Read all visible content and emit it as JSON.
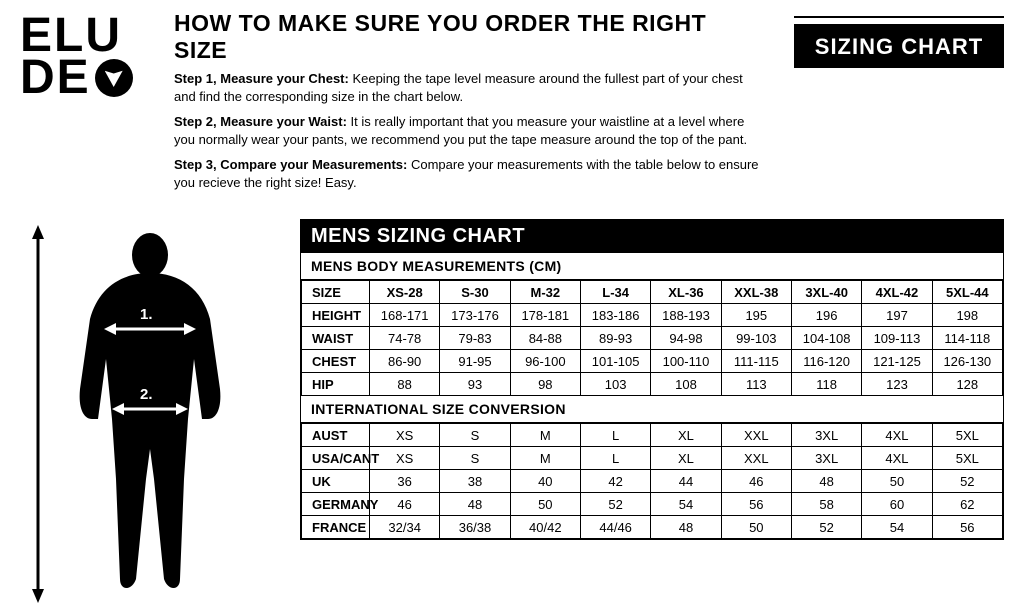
{
  "logo": {
    "line1": "ELU",
    "line2": "DE"
  },
  "header": {
    "title": "HOW TO MAKE SURE YOU ORDER THE RIGHT SIZE",
    "badge": "SIZING CHART",
    "steps": [
      {
        "label": "Step 1, Measure your Chest:",
        "text": " Keeping the tape level measure around the fullest part of your chest and find the corresponding size in the chart below."
      },
      {
        "label": "Step 2, Measure your Waist:",
        "text": " It is really important that you measure your waistline at a level where you normally wear your pants, we recommend you put the tape measure around the top of the pant."
      },
      {
        "label": "Step 3, Compare your Measurements:",
        "text": " Compare your measurements with the table below to ensure you recieve the right size! Easy."
      }
    ]
  },
  "figure": {
    "marker1": "1.",
    "marker2": "2.",
    "silhouette_color": "#000000",
    "marker_text_color": "#ffffff"
  },
  "chart": {
    "title": "MENS SIZING CHART",
    "section1": {
      "title": "MENS BODY MEASUREMENTS (CM)",
      "columns": [
        "SIZE",
        "XS-28",
        "S-30",
        "M-32",
        "L-34",
        "XL-36",
        "XXL-38",
        "3XL-40",
        "4XL-42",
        "5XL-44"
      ],
      "rows": [
        {
          "label": "HEIGHT",
          "cells": [
            "168-171",
            "173-176",
            "178-181",
            "183-186",
            "188-193",
            "195",
            "196",
            "197",
            "198"
          ]
        },
        {
          "label": "WAIST",
          "cells": [
            "74-78",
            "79-83",
            "84-88",
            "89-93",
            "94-98",
            "99-103",
            "104-108",
            "109-113",
            "114-118"
          ]
        },
        {
          "label": "CHEST",
          "cells": [
            "86-90",
            "91-95",
            "96-100",
            "101-105",
            "100-110",
            "111-115",
            "116-120",
            "121-125",
            "126-130"
          ]
        },
        {
          "label": "HIP",
          "cells": [
            "88",
            "93",
            "98",
            "103",
            "108",
            "113",
            "118",
            "123",
            "128"
          ]
        }
      ]
    },
    "section2": {
      "title": "INTERNATIONAL SIZE CONVERSION",
      "rows": [
        {
          "label": "AUST",
          "cells": [
            "XS",
            "S",
            "M",
            "L",
            "XL",
            "XXL",
            "3XL",
            "4XL",
            "5XL"
          ]
        },
        {
          "label": "USA/CANT",
          "cells": [
            "XS",
            "S",
            "M",
            "L",
            "XL",
            "XXL",
            "3XL",
            "4XL",
            "5XL"
          ]
        },
        {
          "label": "UK",
          "cells": [
            "36",
            "38",
            "40",
            "42",
            "44",
            "46",
            "48",
            "50",
            "52"
          ]
        },
        {
          "label": "GERMANY",
          "cells": [
            "46",
            "48",
            "50",
            "52",
            "54",
            "56",
            "58",
            "60",
            "62"
          ]
        },
        {
          "label": "FRANCE",
          "cells": [
            "32/34",
            "36/38",
            "40/42",
            "44/46",
            "48",
            "50",
            "52",
            "54",
            "56"
          ]
        }
      ]
    },
    "style": {
      "border_color": "#000000",
      "header_bg": "#000000",
      "header_fg": "#ffffff",
      "cell_bg": "#ffffff",
      "font_size_cell": 13,
      "font_size_title": 20,
      "col_count": 10
    }
  }
}
